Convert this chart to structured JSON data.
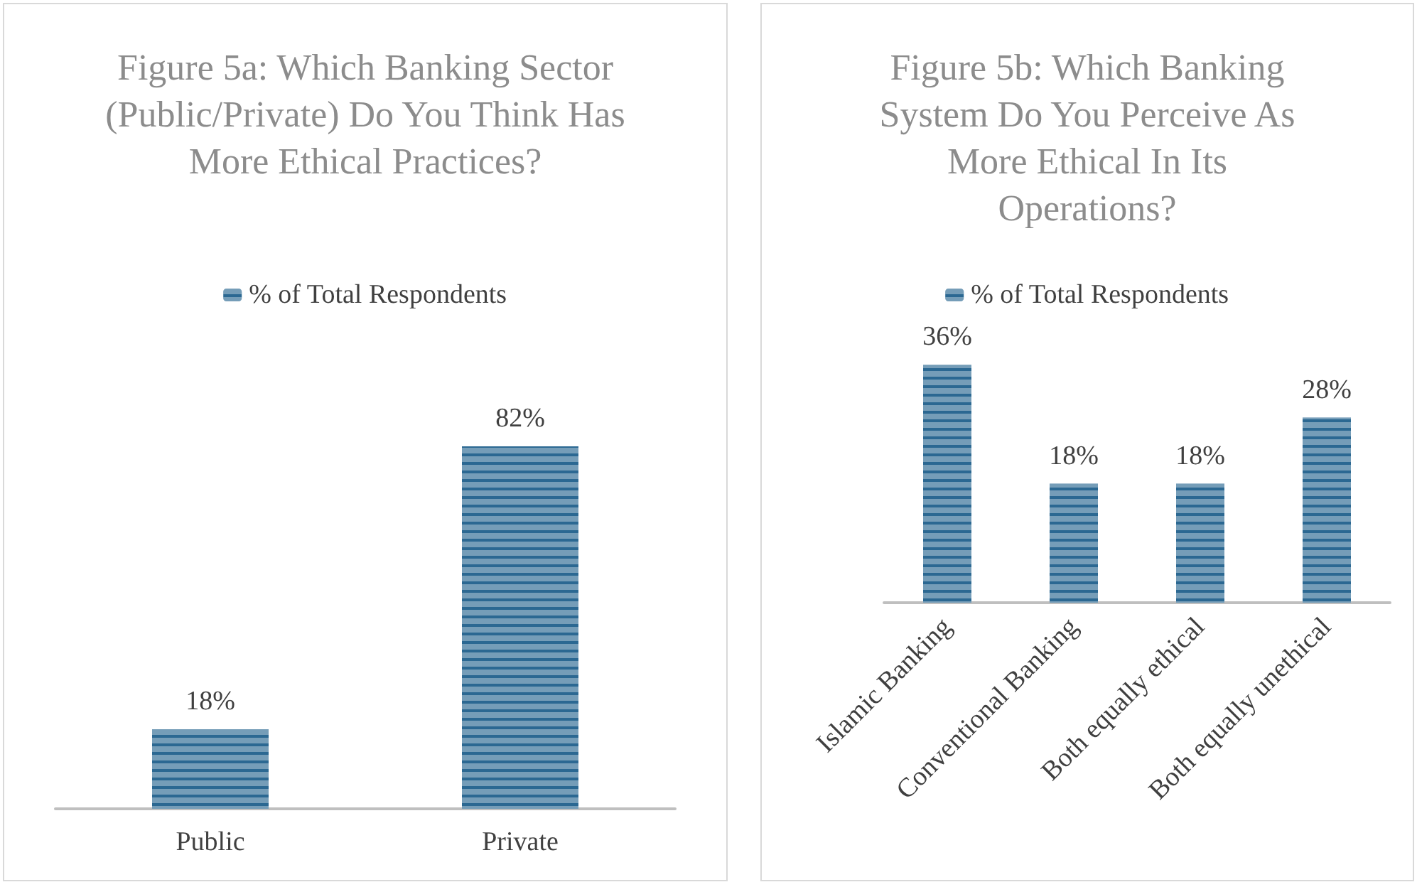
{
  "chart_data": [
    {
      "type": "bar",
      "title": "Figure 5a: Which Banking Sector (Public/Private) Do You Think Has More Ethical Practices?",
      "categories": [
        "Public",
        "Private"
      ],
      "series": [
        {
          "name": "% of Total Respondents",
          "color": "#2b6892",
          "values": [
            18,
            82
          ],
          "value_labels": [
            "18%",
            "82%"
          ]
        }
      ],
      "legend": "top"
    },
    {
      "type": "bar",
      "title": "Figure 5b: Which Banking System Do You Perceive As More Ethical In Its Operations?",
      "categories": [
        "Islamic Banking",
        "Conventional Banking",
        "Both equally ethical",
        "Both equally unethical"
      ],
      "series": [
        {
          "name": "% of Total Respondents",
          "color": "#2b6892",
          "values": [
            36,
            18,
            18,
            28
          ],
          "value_labels": [
            "36%",
            "18%",
            "18%",
            "28%"
          ]
        }
      ],
      "legend": "top"
    }
  ]
}
